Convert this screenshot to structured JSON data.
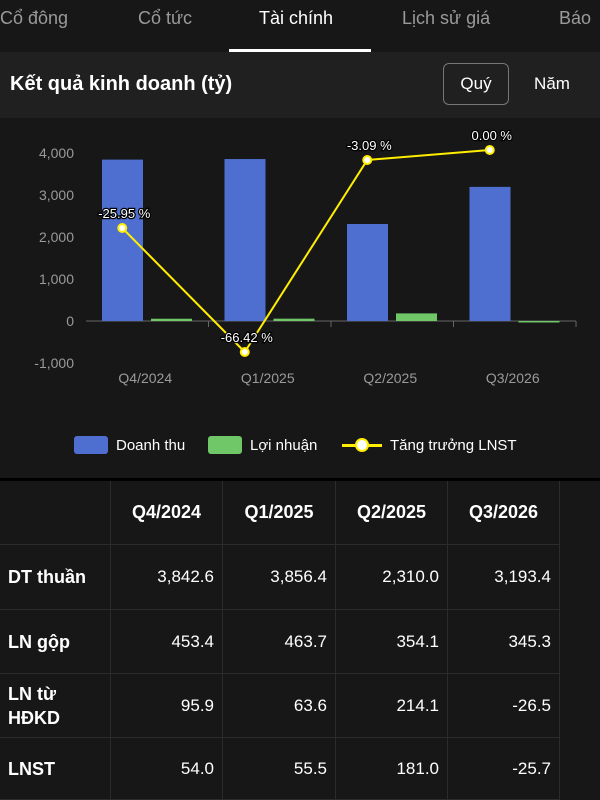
{
  "tabs": [
    {
      "label": "Cổ đông",
      "active": false
    },
    {
      "label": "Cổ tức",
      "active": false
    },
    {
      "label": "Tài chính",
      "active": true
    },
    {
      "label": "Lịch sử giá",
      "active": false
    },
    {
      "label": "Báo",
      "active": false
    }
  ],
  "header": {
    "title": "Kết quả kinh doanh (tỷ)",
    "period_buttons": [
      {
        "label": "Quý",
        "selected": true
      },
      {
        "label": "Năm",
        "selected": false
      }
    ]
  },
  "colors": {
    "revenue": "#4f6fd0",
    "profit": "#6fc767",
    "growth": "#ffee00"
  },
  "chart_data": {
    "type": "bar",
    "categories": [
      "Q4/2024",
      "Q1/2025",
      "Q2/2025",
      "Q3/2026"
    ],
    "ylim": [
      -1000,
      4000
    ],
    "yticks": [
      -1000,
      0,
      1000,
      2000,
      3000,
      4000
    ],
    "ytick_labels": [
      "-1,000",
      "0",
      "1,000",
      "2,000",
      "3,000",
      "4,000"
    ],
    "series": [
      {
        "name": "Doanh thu",
        "type": "bar",
        "values": [
          3842.6,
          3856.4,
          2310.0,
          3193.4
        ]
      },
      {
        "name": "Lợi nhuận",
        "type": "bar",
        "values": [
          54.0,
          55.5,
          181.0,
          -25.7
        ]
      },
      {
        "name": "Tăng trưởng LNST",
        "type": "line",
        "values": [
          -25.95,
          -66.42,
          -3.09,
          0.0
        ],
        "labels": [
          "-25.95 %",
          "-66.42 %",
          "-3.09 %",
          "0.00 %"
        ]
      }
    ],
    "legend_position": "bottom",
    "grid": false
  },
  "table": {
    "columns": [
      "Q4/2024",
      "Q1/2025",
      "Q2/2025",
      "Q3/2026"
    ],
    "rows": [
      {
        "label": "DT thuần",
        "values": [
          "3,842.6",
          "3,856.4",
          "2,310.0",
          "3,193.4"
        ]
      },
      {
        "label": "LN gộp",
        "values": [
          "453.4",
          "463.7",
          "354.1",
          "345.3"
        ]
      },
      {
        "label": "LN từ HĐKD",
        "values": [
          "95.9",
          "63.6",
          "214.1",
          "-26.5"
        ]
      },
      {
        "label": "LNST",
        "values": [
          "54.0",
          "55.5",
          "181.0",
          "-25.7"
        ]
      }
    ]
  }
}
